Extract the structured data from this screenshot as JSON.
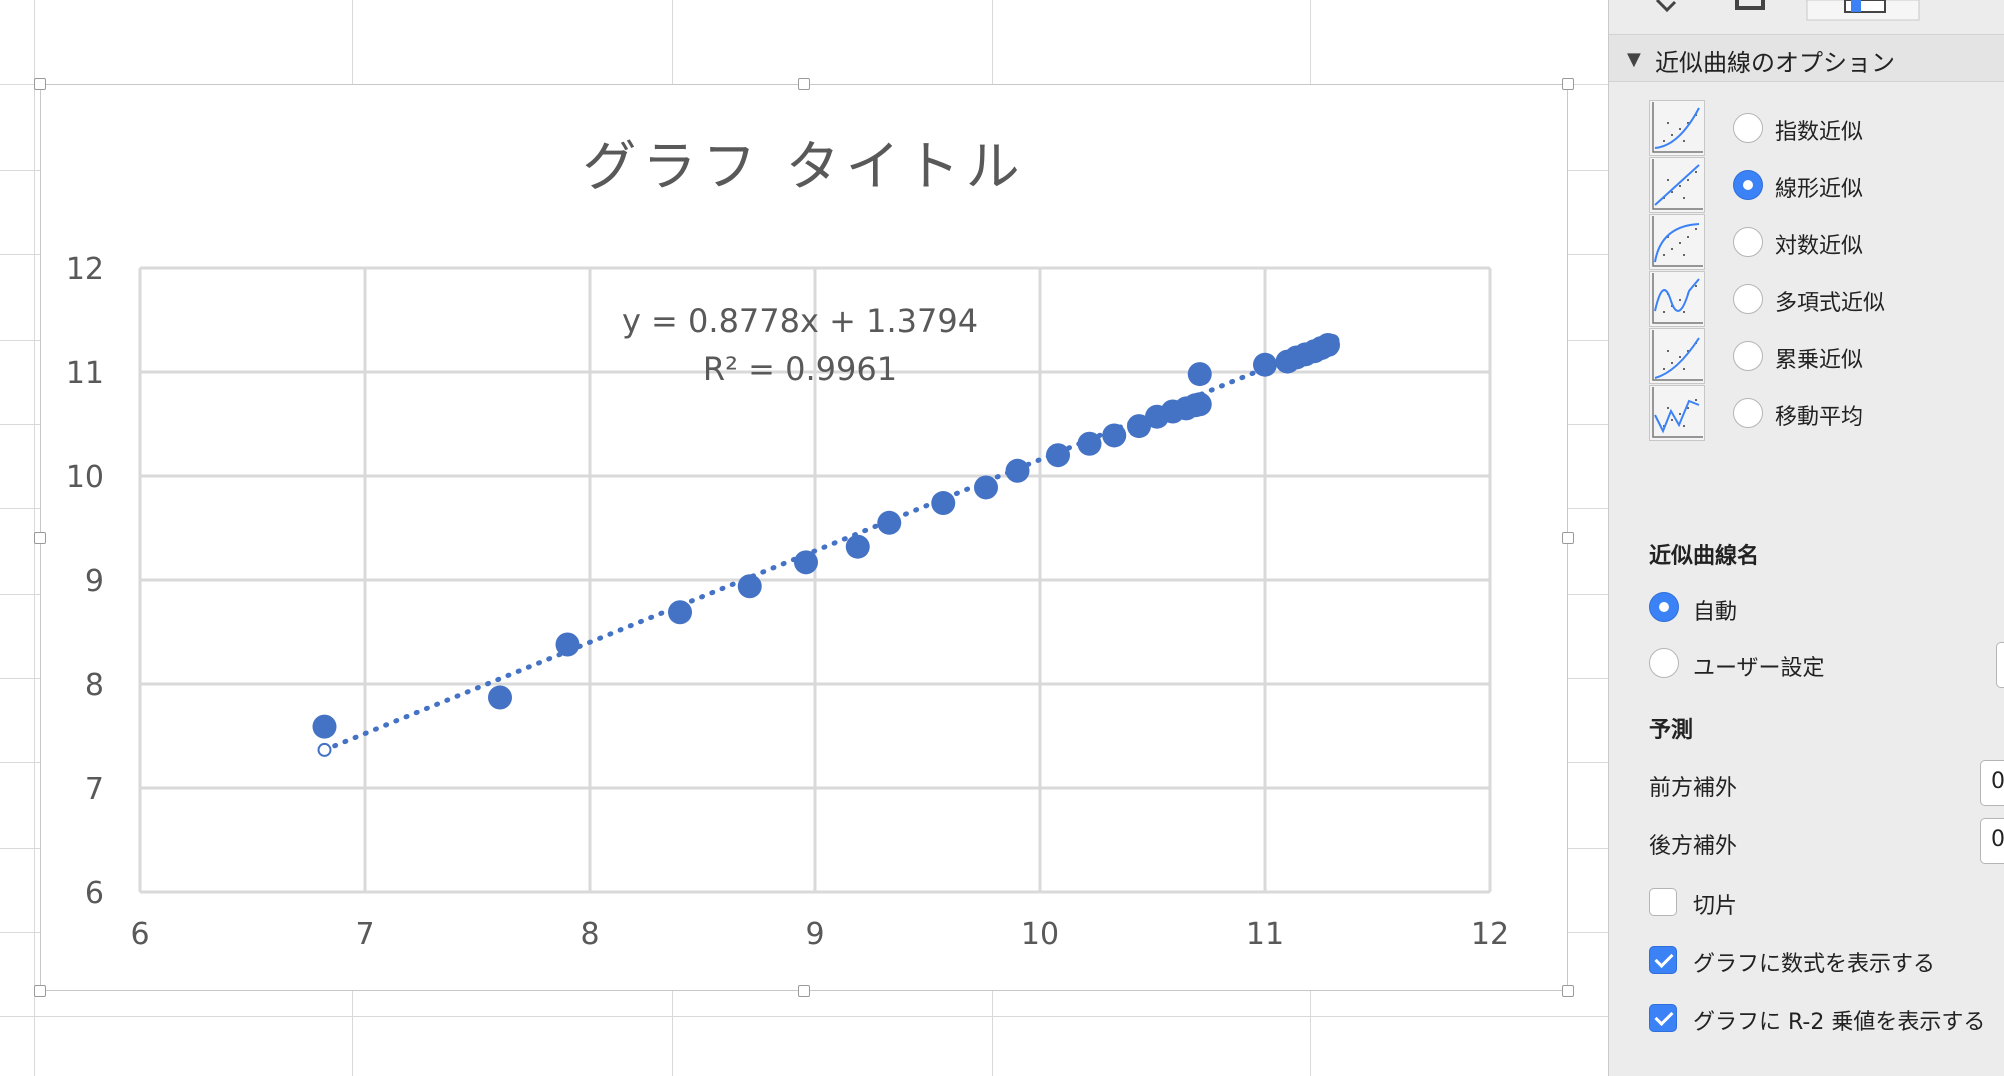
{
  "chart": {
    "title": "グラフ タイトル",
    "equation": "y = 0.8778x + 1.3794",
    "r_squared": "R² = 0.9961"
  },
  "chart_data": {
    "type": "scatter",
    "title": "グラフ タイトル",
    "xlabel": "",
    "ylabel": "",
    "xlim": [
      6,
      12
    ],
    "ylim": [
      6,
      12
    ],
    "x_ticks": [
      "6",
      "7",
      "8",
      "9",
      "10",
      "11",
      "12"
    ],
    "y_ticks": [
      "6",
      "7",
      "8",
      "9",
      "10",
      "11",
      "12"
    ],
    "grid": true,
    "points": [
      [
        6.82,
        7.59
      ],
      [
        7.6,
        7.87
      ],
      [
        7.9,
        8.38
      ],
      [
        8.4,
        8.69
      ],
      [
        8.71,
        8.94
      ],
      [
        8.96,
        9.17
      ],
      [
        9.19,
        9.32
      ],
      [
        9.33,
        9.55
      ],
      [
        9.57,
        9.74
      ],
      [
        9.76,
        9.89
      ],
      [
        9.9,
        10.05
      ],
      [
        10.08,
        10.2
      ],
      [
        10.22,
        10.31
      ],
      [
        10.33,
        10.39
      ],
      [
        10.44,
        10.48
      ],
      [
        10.52,
        10.57
      ],
      [
        10.59,
        10.62
      ],
      [
        10.65,
        10.65
      ],
      [
        10.69,
        10.68
      ],
      [
        10.71,
        10.69
      ],
      [
        10.71,
        10.98
      ],
      [
        11.0,
        11.07
      ],
      [
        11.1,
        11.1
      ],
      [
        11.14,
        11.14
      ],
      [
        11.18,
        11.17
      ],
      [
        11.22,
        11.2
      ],
      [
        11.25,
        11.23
      ],
      [
        11.28,
        11.26
      ]
    ],
    "trendline": {
      "type": "linear",
      "slope": 0.8778,
      "intercept": 1.3794,
      "x_range": [
        6.82,
        11.3
      ],
      "style": "dotted",
      "equation": "y = 0.8778x + 1.3794",
      "r_squared": 0.9961
    },
    "marker_color": "#4472c4"
  },
  "panel": {
    "section_title": "近似曲線のオプション",
    "trend_types": [
      {
        "label": "指数近似",
        "icon": "exponential-trendline-icon",
        "selected": false
      },
      {
        "label": "線形近似",
        "icon": "linear-trendline-icon",
        "selected": true
      },
      {
        "label": "対数近似",
        "icon": "logarithmic-trendline-icon",
        "selected": false
      },
      {
        "label": "多項式近似",
        "icon": "polynomial-trendline-icon",
        "selected": false
      },
      {
        "label": "累乗近似",
        "icon": "power-trendline-icon",
        "selected": false
      },
      {
        "label": "移動平均",
        "icon": "moving-average-trendline-icon",
        "selected": false
      }
    ],
    "name_heading": "近似曲線名",
    "name_auto": "自動",
    "name_custom": "ユーザー設定",
    "name_mode": "auto",
    "forecast_heading": "予測",
    "forward_label": "前方補外",
    "forward_value": "0",
    "backward_label": "後方補外",
    "backward_value": "0",
    "intercept_label": "切片",
    "intercept_checked": false,
    "show_equation_label": "グラフに数式を表示する",
    "show_equation_checked": true,
    "show_r2_label": "グラフに R-2 乗値を表示する",
    "show_r2_checked": true,
    "accent_color": "#3b82f6"
  }
}
